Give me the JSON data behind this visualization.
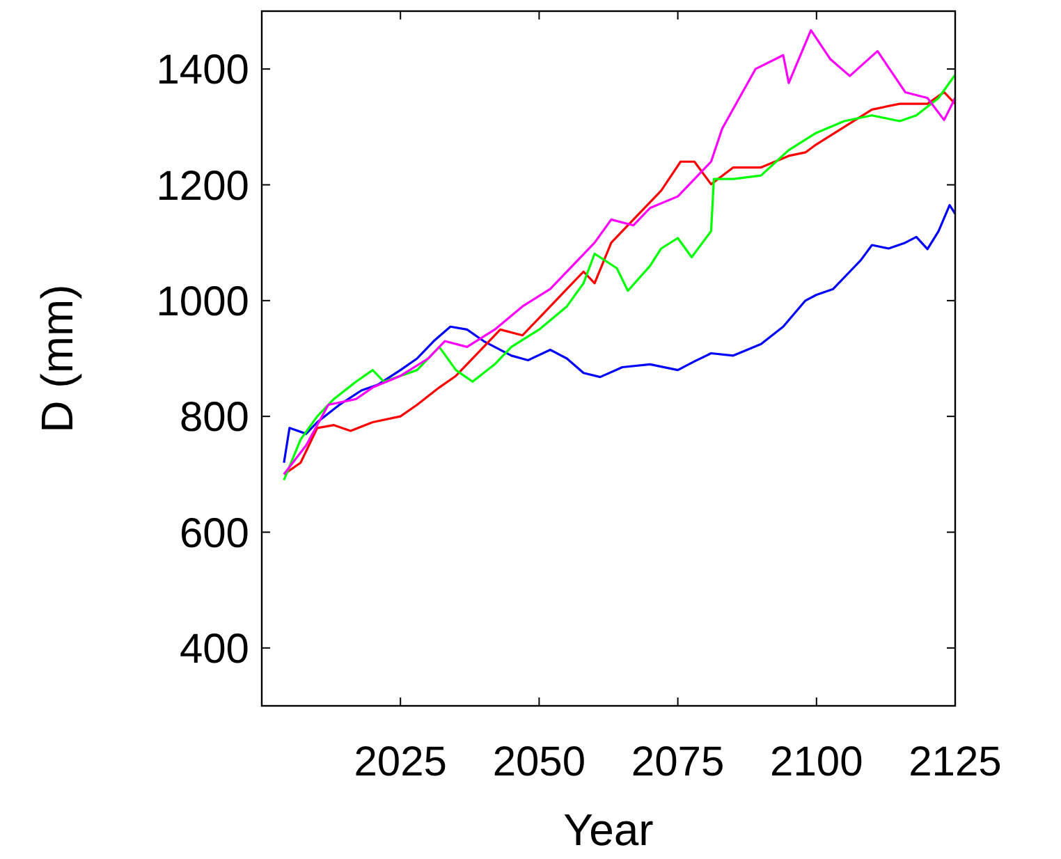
{
  "chart_data": {
    "type": "line",
    "xlabel": "Year",
    "ylabel": "D (mm)",
    "xlim": [
      2000,
      2125
    ],
    "ylim": [
      300,
      1500
    ],
    "xticks": [
      2025,
      2050,
      2075,
      2100,
      2125
    ],
    "yticks": [
      400,
      600,
      800,
      1000,
      1200,
      1400
    ],
    "grid": false,
    "line_style": "solid",
    "series": [
      {
        "color": "#0000ff",
        "x": [
          2004,
          2005,
          2008,
          2010,
          2014,
          2018,
          2021,
          2025,
          2028,
          2031,
          2034,
          2037,
          2040,
          2045,
          2048,
          2052,
          2055,
          2058,
          2061,
          2065,
          2070,
          2075,
          2078,
          2081,
          2085,
          2090,
          2094,
          2098,
          2100,
          2103,
          2106,
          2108,
          2110,
          2113,
          2116,
          2118,
          2120,
          2122,
          2124,
          2125
        ],
        "values": [
          720,
          780,
          770,
          790,
          820,
          845,
          855,
          880,
          900,
          930,
          955,
          950,
          930,
          905,
          897,
          915,
          900,
          875,
          868,
          885,
          890,
          880,
          895,
          909,
          905,
          925,
          955,
          1000,
          1010,
          1020,
          1050,
          1070,
          1096,
          1090,
          1100,
          1110,
          1089,
          1120,
          1165,
          1150
        ]
      },
      {
        "color": "#ff0000",
        "x": [
          2004,
          2007,
          2010,
          2013,
          2016,
          2020,
          2025,
          2028,
          2032,
          2035,
          2040,
          2043,
          2047,
          2050,
          2055,
          2058,
          2060,
          2063,
          2067,
          2072,
          2075.5,
          2078,
          2081,
          2085,
          2090,
          2095,
          2098,
          2100,
          2105,
          2110,
          2115,
          2120,
          2123,
          2125
        ],
        "values": [
          700,
          720,
          780,
          785,
          775,
          790,
          800,
          820,
          850,
          870,
          920,
          950,
          940,
          970,
          1020,
          1050,
          1030,
          1100,
          1140,
          1190,
          1240,
          1240,
          1201,
          1230,
          1230,
          1250,
          1256,
          1270,
          1300,
          1330,
          1340,
          1340,
          1360,
          1340
        ]
      },
      {
        "color": "#00ff00",
        "x": [
          2004,
          2007,
          2010,
          2013,
          2017,
          2020,
          2022,
          2025,
          2028,
          2032,
          2035,
          2038,
          2042,
          2045,
          2050,
          2055,
          2058,
          2060,
          2064,
          2066,
          2070,
          2072,
          2075,
          2077.5,
          2081,
          2081.5,
          2085,
          2090,
          2095,
          2100,
          2105,
          2110,
          2115,
          2118,
          2122,
          2125
        ],
        "values": [
          690,
          760,
          800,
          830,
          860,
          880,
          860,
          870,
          880,
          920,
          880,
          860,
          890,
          920,
          950,
          990,
          1030,
          1081,
          1056,
          1017,
          1060,
          1090,
          1108,
          1075,
          1120,
          1210,
          1210,
          1216,
          1260,
          1290,
          1310,
          1320,
          1310,
          1320,
          1350,
          1390
        ]
      },
      {
        "color": "#ff00ff",
        "x": [
          2004,
          2008,
          2012,
          2017,
          2020,
          2025,
          2030,
          2033,
          2037,
          2042,
          2047,
          2052,
          2056,
          2060,
          2063,
          2067,
          2070,
          2075,
          2081,
          2083,
          2089,
          2094,
          2095,
          2099,
          2102.5,
          2106,
          2111,
          2116,
          2120,
          2123,
          2125
        ],
        "values": [
          700,
          750,
          820,
          830,
          850,
          870,
          900,
          930,
          920,
          950,
          990,
          1020,
          1060,
          1100,
          1140,
          1130,
          1160,
          1180,
          1240,
          1297,
          1400,
          1424,
          1376,
          1467,
          1417,
          1388,
          1431,
          1360,
          1350,
          1312,
          1350
        ]
      }
    ]
  }
}
